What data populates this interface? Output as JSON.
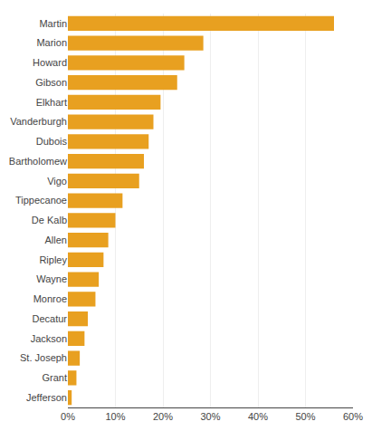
{
  "chart_data": {
    "type": "bar",
    "orientation": "horizontal",
    "categories": [
      "Jefferson",
      "Grant",
      "St. Joseph",
      "Jackson",
      "Decatur",
      "Monroe",
      "Wayne",
      "Ripley",
      "Allen",
      "De Kalb",
      "Tippecanoe",
      "Vigo",
      "Bartholomew",
      "Dubois",
      "Vanderburgh",
      "Elkhart",
      "Gibson",
      "Howard",
      "Marion",
      "Martin"
    ],
    "values": [
      0.8,
      1.8,
      2.5,
      3.5,
      4.2,
      5.8,
      6.5,
      7.5,
      8.5,
      10.0,
      11.5,
      15.0,
      16.0,
      17.0,
      18.0,
      19.5,
      23.0,
      24.5,
      28.5,
      56.0
    ],
    "color": "#E8A020",
    "xlim": [
      0,
      60
    ],
    "xticks": [
      {
        "value": 0,
        "label": "0%"
      },
      {
        "value": 10,
        "label": "10%"
      },
      {
        "value": 20,
        "label": "20%"
      },
      {
        "value": 30,
        "label": "30%"
      },
      {
        "value": 40,
        "label": "40%"
      },
      {
        "value": 50,
        "label": "50%"
      },
      {
        "value": 60,
        "label": "60%"
      }
    ],
    "grid": true
  }
}
